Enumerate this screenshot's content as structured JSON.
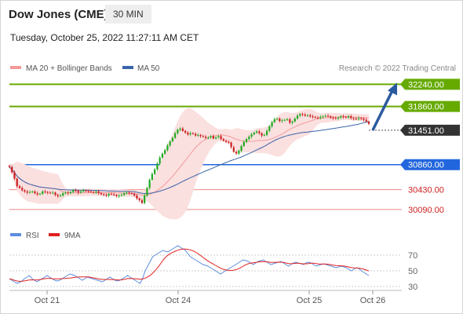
{
  "header": {
    "title": "Dow Jones (CME)",
    "timeframe": "30 MIN",
    "timestamp": "Tuesday, October 25, 2022 11:27:11 AM CET"
  },
  "colors": {
    "green": "#66aa00",
    "blue": "#2266dd",
    "red": "#ee8888",
    "candle_green": "#22aa22",
    "candle_red": "#cc2222",
    "band_fill": "#fbe0e0",
    "ma20": "#f29a9a",
    "ma50": "#3a64a8",
    "dark_label": "#333333",
    "rsi": "#5b8de0",
    "rsi_ma": "#e02020"
  },
  "chart_data": [
    {
      "type": "candlestick",
      "legend": [
        {
          "name": "MA 20 + Bollinger Bands",
          "color": "#f29a9a"
        },
        {
          "name": "MA 50",
          "color": "#3a64a8"
        }
      ],
      "credit": "Research © 2022 Trading Central",
      "ylim": [
        29980,
        32380
      ],
      "x_ticks": [
        "Oct 21",
        "Oct 24",
        "Oct 25",
        "Oct 26"
      ],
      "levels": [
        {
          "value": 32240,
          "label": "32240.00",
          "style": "green"
        },
        {
          "value": 31860,
          "label": "31860.00",
          "style": "green"
        },
        {
          "value": 31451,
          "label": "31451.00",
          "style": "dark"
        },
        {
          "value": 30860,
          "label": "30860.00",
          "style": "blue"
        },
        {
          "value": 30430,
          "label": "30430.00",
          "style": "red"
        },
        {
          "value": 30090,
          "label": "30090.00",
          "style": "red"
        }
      ],
      "projection": {
        "from": 31451,
        "to": 32240
      },
      "closes": [
        30820,
        30730,
        30620,
        30490,
        30460,
        30420,
        30400,
        30380,
        30390,
        30400,
        30370,
        30350,
        30360,
        30400,
        30390,
        30380,
        30370,
        30380,
        30340,
        30320,
        30330,
        30370,
        30380,
        30370,
        30390,
        30420,
        30410,
        30380,
        30400,
        30420,
        30410,
        30400,
        30390,
        30380,
        30400,
        30370,
        30350,
        30340,
        30330,
        30360,
        30350,
        30340,
        30320,
        30330,
        30340,
        30370,
        30380,
        30370,
        30360,
        30330,
        30280,
        30250,
        30200,
        30330,
        30460,
        30600,
        30700,
        30780,
        30880,
        30980,
        31050,
        31110,
        31190,
        31260,
        31320,
        31400,
        31460,
        31480,
        31440,
        31410,
        31380,
        31400,
        31390,
        31360,
        31370,
        31350,
        31340,
        31320,
        31330,
        31350,
        31310,
        31330,
        31350,
        31300,
        31270,
        31250,
        31240,
        31160,
        31080,
        31050,
        31100,
        31180,
        31250,
        31300,
        31340,
        31380,
        31410,
        31430,
        31400,
        31360,
        31370,
        31440,
        31520,
        31590,
        31640,
        31650,
        31610,
        31620,
        31630,
        31640,
        31580,
        31600,
        31650,
        31700,
        31730,
        31720,
        31700,
        31710,
        31690,
        31680,
        31670,
        31660,
        31680,
        31690,
        31700,
        31690,
        31670,
        31660,
        31650,
        31670,
        31690,
        31680,
        31670,
        31690,
        31660,
        31650,
        31640,
        31660,
        31650,
        31630,
        31600,
        31560
      ]
    },
    {
      "type": "line",
      "legend": [
        {
          "name": "RSI",
          "color": "#5b8de0"
        },
        {
          "name": "9MA",
          "color": "#e02020"
        }
      ],
      "ylim": [
        20,
        85
      ],
      "y_ticks": [
        70,
        50,
        30
      ],
      "rsi": [
        40,
        38,
        36,
        34,
        35,
        37,
        40,
        42,
        44,
        40,
        38,
        36,
        38,
        40,
        42,
        44,
        42,
        40,
        38,
        37,
        38,
        40,
        42,
        44,
        46,
        45,
        44,
        42,
        40,
        38,
        40,
        42,
        41,
        40,
        39,
        38,
        37,
        36,
        38,
        40,
        42,
        40,
        38,
        37,
        38,
        40,
        42,
        44,
        42,
        40,
        38,
        36,
        34,
        40,
        50,
        56,
        62,
        68,
        70,
        72,
        74,
        76,
        75,
        74,
        76,
        78,
        80,
        82,
        80,
        78,
        76,
        72,
        68,
        66,
        64,
        62,
        60,
        58,
        57,
        56,
        54,
        52,
        50,
        48,
        46,
        48,
        50,
        52,
        54,
        56,
        58,
        60,
        62,
        64,
        63,
        62,
        60,
        58,
        60,
        62,
        63,
        64,
        62,
        60,
        58,
        59,
        60,
        61,
        62,
        60,
        58,
        56,
        58,
        60,
        61,
        60,
        59,
        58,
        60,
        61,
        60,
        58,
        56,
        57,
        58,
        59,
        58,
        57,
        56,
        55,
        54,
        55,
        56,
        55,
        54,
        52,
        50,
        52,
        54,
        53,
        50,
        48,
        46,
        44
      ]
    }
  ]
}
